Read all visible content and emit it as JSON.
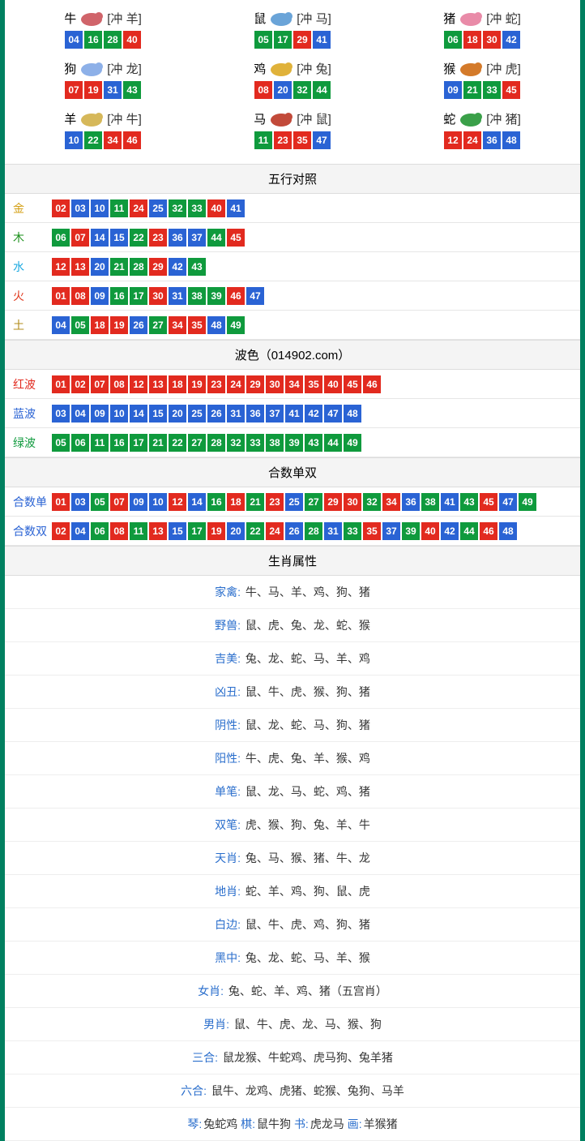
{
  "colors": {
    "red": "#e22a1f",
    "blue": "#2a63d4",
    "green": "#0f9a3d",
    "gold": "#d4a017",
    "wood": "#1a8f1a",
    "water": "#1ca9e0",
    "fire": "#e03a1f",
    "earth": "#b28b1a",
    "red_label": "#e22a1f",
    "blue_label": "#2a63d4",
    "green_label": "#0f9a3d",
    "heshu_label": "#2a63d4",
    "attr_label": "#2a6ecc"
  },
  "ball_color_map": {
    "01": "red",
    "02": "red",
    "07": "red",
    "08": "red",
    "12": "red",
    "13": "red",
    "18": "red",
    "19": "red",
    "23": "red",
    "24": "red",
    "29": "red",
    "30": "red",
    "34": "red",
    "35": "red",
    "40": "red",
    "45": "red",
    "46": "red",
    "03": "blue",
    "04": "blue",
    "09": "blue",
    "10": "blue",
    "14": "blue",
    "15": "blue",
    "20": "blue",
    "25": "blue",
    "26": "blue",
    "31": "blue",
    "36": "blue",
    "37": "blue",
    "41": "blue",
    "42": "blue",
    "47": "blue",
    "48": "blue",
    "05": "green",
    "06": "green",
    "11": "green",
    "16": "green",
    "17": "green",
    "21": "green",
    "22": "green",
    "27": "green",
    "28": "green",
    "32": "green",
    "33": "green",
    "38": "green",
    "39": "green",
    "43": "green",
    "44": "green",
    "49": "green"
  },
  "zodiac": [
    {
      "name": "牛",
      "chong": "[冲 羊]",
      "balls": [
        "04",
        "16",
        "28",
        "40"
      ],
      "svg_fill": "#d0646a"
    },
    {
      "name": "鼠",
      "chong": "[冲 马]",
      "balls": [
        "05",
        "17",
        "29",
        "41"
      ],
      "svg_fill": "#6aa4d8"
    },
    {
      "name": "猪",
      "chong": "[冲 蛇]",
      "balls": [
        "06",
        "18",
        "30",
        "42"
      ],
      "svg_fill": "#e98ba8"
    },
    {
      "name": "狗",
      "chong": "[冲 龙]",
      "balls": [
        "07",
        "19",
        "31",
        "43"
      ],
      "svg_fill": "#8db0e8"
    },
    {
      "name": "鸡",
      "chong": "[冲 兔]",
      "balls": [
        "08",
        "20",
        "32",
        "44"
      ],
      "svg_fill": "#e0b23a"
    },
    {
      "name": "猴",
      "chong": "[冲 虎]",
      "balls": [
        "09",
        "21",
        "33",
        "45"
      ],
      "svg_fill": "#d47a2a"
    },
    {
      "name": "羊",
      "chong": "[冲 牛]",
      "balls": [
        "10",
        "22",
        "34",
        "46"
      ],
      "svg_fill": "#d6b85a"
    },
    {
      "name": "马",
      "chong": "[冲 鼠]",
      "balls": [
        "11",
        "23",
        "35",
        "47"
      ],
      "svg_fill": "#c24a3a"
    },
    {
      "name": "蛇",
      "chong": "[冲 猪]",
      "balls": [
        "12",
        "24",
        "36",
        "48"
      ],
      "svg_fill": "#3aa049"
    }
  ],
  "wuxing_header": "五行对照",
  "wuxing": [
    {
      "label": "金",
      "label_color": "gold",
      "balls": [
        "02",
        "03",
        "10",
        "11",
        "24",
        "25",
        "32",
        "33",
        "40",
        "41"
      ]
    },
    {
      "label": "木",
      "label_color": "wood",
      "balls": [
        "06",
        "07",
        "14",
        "15",
        "22",
        "23",
        "36",
        "37",
        "44",
        "45"
      ]
    },
    {
      "label": "水",
      "label_color": "water",
      "balls": [
        "12",
        "13",
        "20",
        "21",
        "28",
        "29",
        "42",
        "43"
      ]
    },
    {
      "label": "火",
      "label_color": "fire",
      "balls": [
        "01",
        "08",
        "09",
        "16",
        "17",
        "30",
        "31",
        "38",
        "39",
        "46",
        "47"
      ]
    },
    {
      "label": "土",
      "label_color": "earth",
      "balls": [
        "04",
        "05",
        "18",
        "19",
        "26",
        "27",
        "34",
        "35",
        "48",
        "49"
      ]
    }
  ],
  "bose_header": "波色（014902.com）",
  "bose": [
    {
      "label": "红波",
      "label_color": "red_label",
      "balls": [
        "01",
        "02",
        "07",
        "08",
        "12",
        "13",
        "18",
        "19",
        "23",
        "24",
        "29",
        "30",
        "34",
        "35",
        "40",
        "45",
        "46"
      ]
    },
    {
      "label": "蓝波",
      "label_color": "blue_label",
      "balls": [
        "03",
        "04",
        "09",
        "10",
        "14",
        "15",
        "20",
        "25",
        "26",
        "31",
        "36",
        "37",
        "41",
        "42",
        "47",
        "48"
      ]
    },
    {
      "label": "绿波",
      "label_color": "green_label",
      "balls": [
        "05",
        "06",
        "11",
        "16",
        "17",
        "21",
        "22",
        "27",
        "28",
        "32",
        "33",
        "38",
        "39",
        "43",
        "44",
        "49"
      ]
    }
  ],
  "heshu_header": "合数单双",
  "heshu": [
    {
      "label": "合数单",
      "label_color": "heshu_label",
      "balls": [
        "01",
        "03",
        "05",
        "07",
        "09",
        "10",
        "12",
        "14",
        "16",
        "18",
        "21",
        "23",
        "25",
        "27",
        "29",
        "30",
        "32",
        "34",
        "36",
        "38",
        "41",
        "43",
        "45",
        "47",
        "49"
      ]
    },
    {
      "label": "合数双",
      "label_color": "heshu_label",
      "balls": [
        "02",
        "04",
        "06",
        "08",
        "11",
        "13",
        "15",
        "17",
        "19",
        "20",
        "22",
        "24",
        "26",
        "28",
        "31",
        "33",
        "35",
        "37",
        "39",
        "40",
        "42",
        "44",
        "46",
        "48"
      ]
    }
  ],
  "attr_header": "生肖属性",
  "attrs": [
    {
      "label": "家禽:",
      "value": "牛、马、羊、鸡、狗、猪"
    },
    {
      "label": "野兽:",
      "value": "鼠、虎、兔、龙、蛇、猴"
    },
    {
      "label": "吉美:",
      "value": "兔、龙、蛇、马、羊、鸡"
    },
    {
      "label": "凶丑:",
      "value": "鼠、牛、虎、猴、狗、猪"
    },
    {
      "label": "阴性:",
      "value": "鼠、龙、蛇、马、狗、猪"
    },
    {
      "label": "阳性:",
      "value": "牛、虎、兔、羊、猴、鸡"
    },
    {
      "label": "单笔:",
      "value": "鼠、龙、马、蛇、鸡、猪"
    },
    {
      "label": "双笔:",
      "value": "虎、猴、狗、兔、羊、牛"
    },
    {
      "label": "天肖:",
      "value": "兔、马、猴、猪、牛、龙"
    },
    {
      "label": "地肖:",
      "value": "蛇、羊、鸡、狗、鼠、虎"
    },
    {
      "label": "白边:",
      "value": "鼠、牛、虎、鸡、狗、猪"
    },
    {
      "label": "黑中:",
      "value": "兔、龙、蛇、马、羊、猴"
    },
    {
      "label": "女肖:",
      "value": "兔、蛇、羊、鸡、猪（五宫肖）"
    },
    {
      "label": "男肖:",
      "value": "鼠、牛、虎、龙、马、猴、狗"
    },
    {
      "label": "三合:",
      "value": "鼠龙猴、牛蛇鸡、虎马狗、兔羊猪"
    },
    {
      "label": "六合:",
      "value": "鼠牛、龙鸡、虎猪、蛇猴、兔狗、马羊"
    }
  ],
  "footer_line": {
    "parts": [
      {
        "label": "琴:",
        "value": "兔蛇鸡   "
      },
      {
        "label": "棋:",
        "value": "鼠牛狗   "
      },
      {
        "label": "书:",
        "value": "虎龙马   "
      },
      {
        "label": "画:",
        "value": "羊猴猪"
      }
    ]
  }
}
